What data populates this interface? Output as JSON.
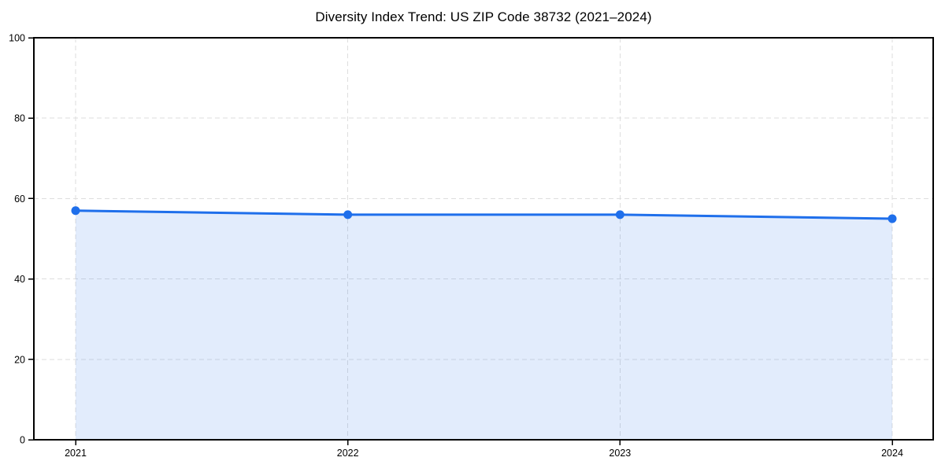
{
  "chart_data": {
    "type": "area",
    "title": "Diversity Index Trend: US ZIP Code 38732 (2021–2024)",
    "x": [
      "2021",
      "2022",
      "2023",
      "2024"
    ],
    "values": [
      57,
      56,
      56,
      55
    ],
    "xlabel": "",
    "ylabel": "",
    "ylim": [
      0,
      100
    ],
    "yticks": [
      0,
      20,
      40,
      60,
      80,
      100
    ],
    "grid": "dashed-both-axes",
    "legend": "none",
    "marker": "circle",
    "colors": {
      "line": "#1f6feb",
      "marker": "#1f6feb",
      "fill": "#1f6feb",
      "fill_opacity": 0.13,
      "grid": "#dedede",
      "axis": "#000000",
      "tick_text": "#000000"
    }
  }
}
